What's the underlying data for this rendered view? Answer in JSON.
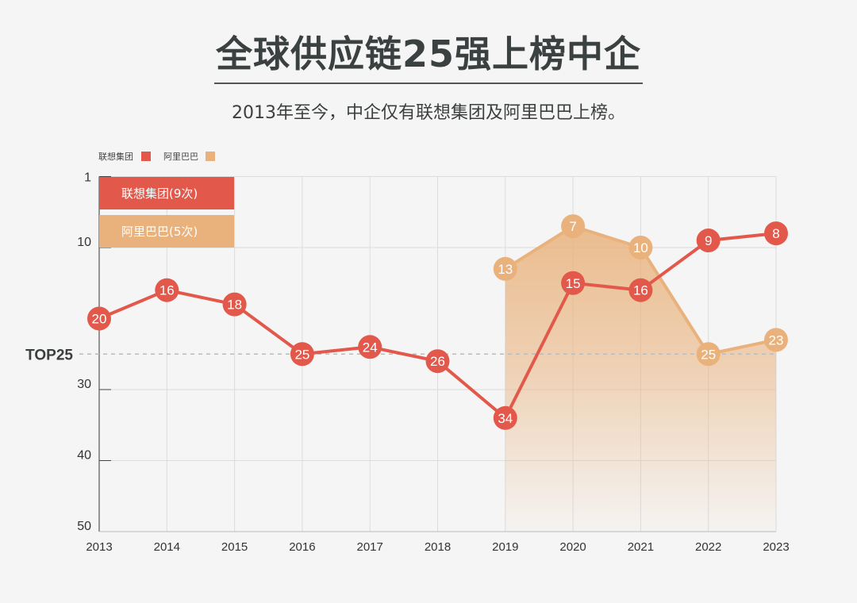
{
  "title": "全球供应链25强上榜中企",
  "subtitle": "2013年至今，中企仅有联想集团及阿里巴巴上榜。",
  "colors": {
    "lenovo": "#e2584b",
    "alibaba": "#e9b27c",
    "background": "#f5f5f5"
  },
  "chart_data": {
    "type": "line",
    "x": [
      "2013",
      "2014",
      "2015",
      "2016",
      "2017",
      "2018",
      "2019",
      "2020",
      "2021",
      "2022",
      "2023"
    ],
    "ylim": [
      0,
      50
    ],
    "y_inverted": true,
    "y_ticks": [
      {
        "value": 0,
        "label": "1"
      },
      {
        "value": 10,
        "label": "10"
      },
      {
        "value": 30,
        "label": "30"
      },
      {
        "value": 40,
        "label": "40"
      },
      {
        "value": 50,
        "label": "50"
      }
    ],
    "reference_line": {
      "value": 25,
      "label": "TOP25",
      "style": "dashed"
    },
    "grid": true,
    "legend": {
      "placement": "top-left",
      "entries": [
        "联想集团",
        "阿里巴巴"
      ]
    },
    "summary_cards": [
      "联想集团(9次)",
      "阿里巴巴(5次)"
    ],
    "series": [
      {
        "name": "联想集团",
        "x": [
          "2013",
          "2014",
          "2015",
          "2016",
          "2017",
          "2018",
          "2019",
          "2020",
          "2021",
          "2022",
          "2023"
        ],
        "values": [
          20,
          16,
          18,
          25,
          24,
          26,
          34,
          15,
          16,
          9,
          8
        ]
      },
      {
        "name": "阿里巴巴",
        "x": [
          "2019",
          "2020",
          "2021",
          "2022",
          "2023"
        ],
        "values": [
          13,
          7,
          10,
          25,
          23
        ],
        "area": true
      }
    ]
  }
}
